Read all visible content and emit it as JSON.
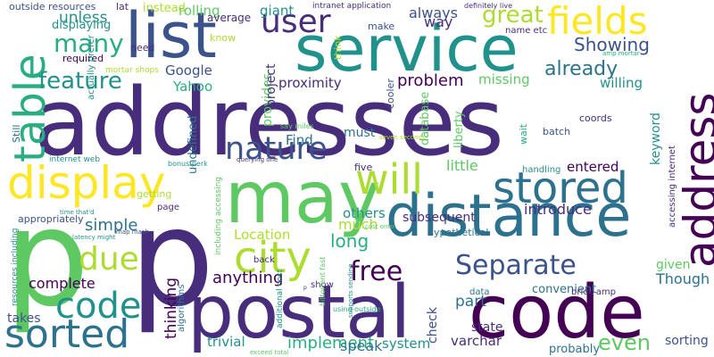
{
  "palette": {
    "background": "#ffffff",
    "colors": [
      "#440154",
      "#472d7b",
      "#3b528b",
      "#2c728e",
      "#21918c",
      "#28ae80",
      "#5ec962",
      "#addc30",
      "#fde725"
    ]
  },
  "words": [
    {
      "text": "addresses",
      "color": "#472d7b"
    },
    {
      "text": "p",
      "color": "#5ec962"
    },
    {
      "text": "p",
      "color": "#472d7b"
    },
    {
      "text": "postal",
      "color": "#472d7b"
    },
    {
      "text": "code",
      "color": "#440154"
    },
    {
      "text": "service",
      "color": "#21918c"
    },
    {
      "text": "list",
      "color": "#3b528b"
    },
    {
      "text": "distance",
      "color": "#2c728e"
    },
    {
      "text": "may",
      "color": "#5ec962"
    },
    {
      "text": "address",
      "color": "#440154"
    },
    {
      "text": "table",
      "color": "#28ae80"
    },
    {
      "text": "display",
      "color": "#fde725"
    },
    {
      "text": "will",
      "color": "#addc30"
    },
    {
      "text": "stored",
      "color": "#2c728e"
    },
    {
      "text": "nature",
      "color": "#3b528b"
    },
    {
      "text": "fields",
      "color": "#fde725"
    },
    {
      "text": "user",
      "color": "#472d7b"
    },
    {
      "text": "sorted",
      "color": "#2c728e"
    },
    {
      "text": "code",
      "color": "#21918c"
    },
    {
      "text": "Separate",
      "color": "#3b528b"
    },
    {
      "text": "city",
      "color": "#addc30"
    },
    {
      "text": "due",
      "color": "#addc30"
    },
    {
      "text": "feature",
      "color": "#21918c"
    },
    {
      "text": "free",
      "color": "#440154"
    },
    {
      "text": "great",
      "color": "#addc30"
    },
    {
      "text": "already",
      "color": "#2c728e"
    },
    {
      "text": "many",
      "color": "#28ae80"
    },
    {
      "text": "Showing",
      "color": "#3b528b"
    },
    {
      "text": "problem",
      "color": "#440154"
    },
    {
      "text": "simple",
      "color": "#2c728e"
    },
    {
      "text": "anything",
      "color": "#440154"
    },
    {
      "text": "Though",
      "color": "#2c728e"
    },
    {
      "text": "part",
      "color": "#2c728e"
    },
    {
      "text": "long",
      "color": "#28ae80"
    },
    {
      "text": "even",
      "color": "#5ec962"
    },
    {
      "text": "implement",
      "color": "#28ae80"
    },
    {
      "text": "proximity",
      "color": "#472d7b"
    },
    {
      "text": "little",
      "color": "#5ec962"
    },
    {
      "text": "Find",
      "color": "#2c728e"
    },
    {
      "text": "must",
      "color": "#2c728e"
    },
    {
      "text": "complete",
      "color": "#440154"
    },
    {
      "text": "introduce",
      "color": "#472d7b"
    },
    {
      "text": "others",
      "color": "#21918c"
    },
    {
      "text": "much",
      "color": "#addc30"
    },
    {
      "text": "willing",
      "color": "#21918c"
    },
    {
      "text": "Location",
      "color": "#addc30"
    },
    {
      "text": "unless",
      "color": "#21918c"
    },
    {
      "text": "always",
      "color": "#3b528b"
    },
    {
      "text": "way",
      "color": "#472d7b"
    },
    {
      "text": "missing",
      "color": "#5ec962"
    },
    {
      "text": "rolling",
      "color": "#5ec962"
    },
    {
      "text": "giant",
      "color": "#21918c"
    },
    {
      "text": "Google",
      "color": "#3b528b"
    },
    {
      "text": "Yahoo",
      "color": "#28ae80"
    },
    {
      "text": "trivial",
      "color": "#21918c"
    },
    {
      "text": "speak",
      "color": "#2c728e"
    },
    {
      "text": "system",
      "color": "#21918c"
    },
    {
      "text": "varchar",
      "color": "#472d7b"
    },
    {
      "text": "state",
      "color": "#472d7b"
    },
    {
      "text": "entered",
      "color": "#440154"
    },
    {
      "text": "given",
      "color": "#5ec962"
    },
    {
      "text": "check",
      "color": "#3b528b"
    },
    {
      "text": "thinking",
      "color": "#440154"
    },
    {
      "text": "takes",
      "color": "#3b528b"
    },
    {
      "text": "sorting",
      "color": "#3b528b"
    },
    {
      "text": "probably",
      "color": "#2c728e"
    },
    {
      "text": "subsequent",
      "color": "#472d7b"
    },
    {
      "text": "convenient",
      "color": "#2c728e"
    },
    {
      "text": "keyword",
      "color": "#21918c"
    },
    {
      "text": "liberty",
      "color": "#5ec962"
    },
    {
      "text": "database",
      "color": "#5ec962"
    },
    {
      "text": "provides",
      "color": "#5ec962"
    },
    {
      "text": "project",
      "color": "#472d7b"
    },
    {
      "text": "undefined",
      "color": "#2c728e"
    },
    {
      "text": "displaying",
      "color": "#21918c"
    },
    {
      "text": "outside resources",
      "color": "#3b528b"
    },
    {
      "text": "lat",
      "color": "#472d7b"
    },
    {
      "text": "instead",
      "color": "#addc30"
    },
    {
      "text": "average",
      "color": "#472d7b"
    },
    {
      "text": "need",
      "color": "#472d7b"
    },
    {
      "text": "required",
      "color": "#440154"
    },
    {
      "text": "mortar shops",
      "color": "#addc30"
    },
    {
      "text": "know",
      "color": "#addc30"
    },
    {
      "text": "intranet application",
      "color": "#472d7b"
    },
    {
      "text": "make",
      "color": "#3b528b"
    },
    {
      "text": "name etc",
      "color": "#472d7b"
    },
    {
      "text": "definitely live",
      "color": "#472d7b"
    },
    {
      "text": "amp mortar",
      "color": "#28ae80"
    },
    {
      "text": "coords",
      "color": "#472d7b"
    },
    {
      "text": "batch",
      "color": "#3b528b"
    },
    {
      "text": "wait",
      "color": "#28ae80"
    },
    {
      "text": "think",
      "color": "#addc30"
    },
    {
      "text": "cooler",
      "color": "#3b528b"
    },
    {
      "text": "actually prefer",
      "color": "#21918c"
    },
    {
      "text": "Still",
      "color": "#2c728e"
    },
    {
      "text": "internet web",
      "color": "#21918c"
    },
    {
      "text": "bonus perk",
      "color": "#21918c"
    },
    {
      "text": "querying one",
      "color": "#472d7b"
    },
    {
      "text": "say miles",
      "color": "#5ec962"
    },
    {
      "text": "seven seconds",
      "color": "#addc30"
    },
    {
      "text": "five",
      "color": "#472d7b"
    },
    {
      "text": "handling",
      "color": "#21918c"
    },
    {
      "text": "accessing internet",
      "color": "#472d7b"
    },
    {
      "text": "appropriately",
      "color": "#3b528b"
    },
    {
      "text": "getting",
      "color": "#addc30"
    },
    {
      "text": "page",
      "color": "#472d7b"
    },
    {
      "text": "time that'd",
      "color": "#21918c"
    },
    {
      "text": "cost onto",
      "color": "#5ec962"
    },
    {
      "text": "latency might",
      "color": "#21918c"
    },
    {
      "text": "map mash",
      "color": "#3b528b"
    },
    {
      "text": "including accessing",
      "color": "#5ec962"
    },
    {
      "text": "back",
      "color": "#472d7b"
    },
    {
      "text": "show",
      "color": "#472d7b"
    },
    {
      "text": "hypothetical",
      "color": "#2c728e"
    },
    {
      "text": "resources including",
      "color": "#21918c"
    },
    {
      "text": "algorithms",
      "color": "#2c728e"
    },
    {
      "text": "additional cost",
      "color": "#21918c"
    },
    {
      "text": "p",
      "color": "#472d7b"
    },
    {
      "text": "bittorrent fast",
      "color": "#5ec962"
    },
    {
      "text": "using outside",
      "color": "#28ae80"
    },
    {
      "text": "supports sending",
      "color": "#21918c"
    },
    {
      "text": "exceed total",
      "color": "#5ec962"
    },
    {
      "text": "data",
      "color": "#2c728e"
    },
    {
      "text": "brick amp",
      "color": "#472d7b"
    }
  ]
}
